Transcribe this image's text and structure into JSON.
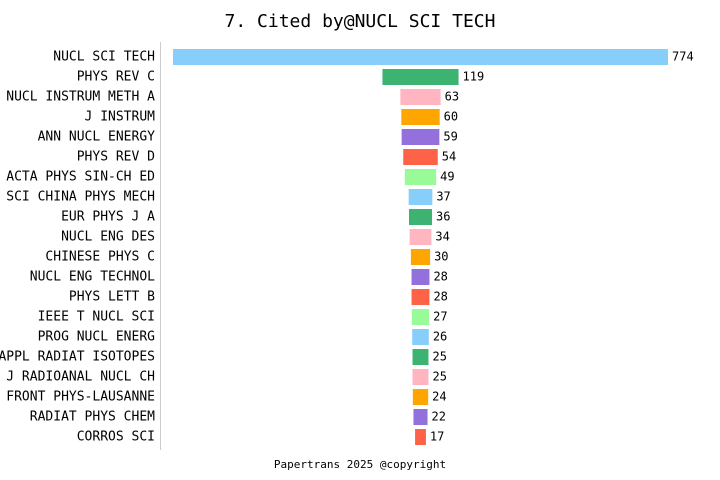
{
  "chart_data": {
    "type": "bar",
    "orientation": "horizontal",
    "align": "center",
    "title": "7. Cited by@NUCL SCI TECH",
    "footer": "Papertrans 2025 @copyright",
    "categories": [
      "NUCL SCI TECH",
      "PHYS REV C",
      "NUCL INSTRUM METH A",
      "J INSTRUM",
      "ANN NUCL ENERGY",
      "PHYS REV D",
      "ACTA PHYS SIN-CH ED",
      "SCI CHINA PHYS MECH",
      "EUR PHYS J A",
      "NUCL ENG DES",
      "CHINESE PHYS C",
      "NUCL ENG TECHNOL",
      "PHYS LETT B",
      "IEEE T NUCL SCI",
      "PROG NUCL ENERG",
      "APPL RADIAT ISOTOPES",
      "J RADIOANAL NUCL CH",
      "FRONT PHYS-LAUSANNE",
      "RADIAT PHYS CHEM",
      "CORROS SCI"
    ],
    "values": [
      774,
      119,
      63,
      60,
      59,
      54,
      49,
      37,
      36,
      34,
      30,
      28,
      28,
      27,
      26,
      25,
      25,
      24,
      22,
      17
    ],
    "colors": [
      "#87cefa",
      "#3cb371",
      "#ffb6c1",
      "#ffa500",
      "#9370db",
      "#ff6347",
      "#98fb98"
    ]
  }
}
